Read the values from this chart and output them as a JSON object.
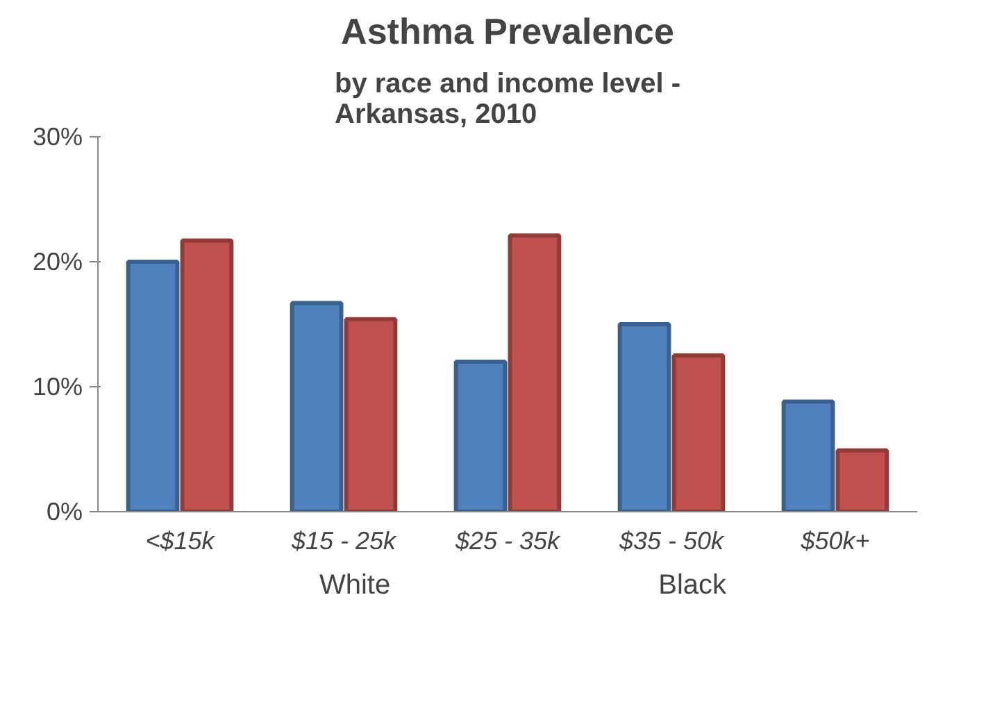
{
  "chart_data": {
    "type": "bar",
    "title": "Asthma Prevalence",
    "subtitle": "by race and income level -\nArkansas, 2010",
    "categories": [
      "<$15k",
      "$15 - 25k",
      "$25 - 35k",
      "$35 - 50k",
      "$50k+"
    ],
    "series": [
      {
        "name": "White",
        "color": "#4f81bd",
        "values": [
          20.0,
          16.7,
          12.0,
          15.0,
          8.8
        ]
      },
      {
        "name": "Black",
        "color": "#c0504d",
        "values": [
          21.7,
          15.4,
          22.1,
          12.5,
          4.9
        ]
      }
    ],
    "ylim": [
      0,
      30
    ],
    "yticks": [
      {
        "value": 0,
        "label": "0%"
      },
      {
        "value": 10,
        "label": "10%"
      },
      {
        "value": 20,
        "label": "20%"
      },
      {
        "value": 30,
        "label": "30%"
      }
    ],
    "grid": false,
    "legend": "bottom"
  }
}
